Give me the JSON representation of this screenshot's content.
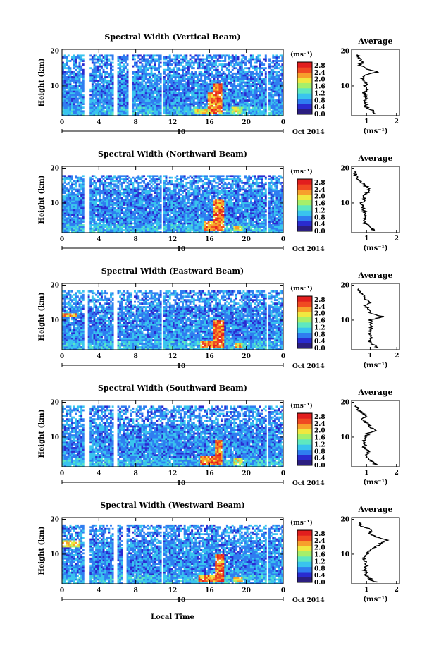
{
  "figure": {
    "x_axis_label": "Local Time",
    "day_label": "10",
    "month_label": "Oct 2014",
    "y_axis_label": "Height (km)",
    "colorbar_unit": "(ms⁻¹)",
    "profile_title": "Average",
    "profile_xlabel": "(ms⁻¹)"
  },
  "colorscale": {
    "stops": [
      "#2b1e80",
      "#2a2bd0",
      "#2f7df0",
      "#39c4ee",
      "#5ee8c0",
      "#a6ef6a",
      "#f0e840",
      "#f7a02c",
      "#f04a22",
      "#e21e1e"
    ],
    "tick_labels": [
      "2.8",
      "2.4",
      "2.0",
      "1.6",
      "1.2",
      "0.8",
      "0.4",
      "0.0"
    ]
  },
  "chart_data": [
    {
      "type": "heatmap",
      "title": "Spectral Width (Vertical Beam)",
      "x": [
        0,
        4,
        8,
        12,
        16,
        20,
        24
      ],
      "x_tick_labels": [
        "0",
        "4",
        "8",
        "12",
        "16",
        "20",
        "0"
      ],
      "y_ticks": [
        10,
        20
      ],
      "y_tick_labels": [
        "10",
        "20"
      ],
      "ylim": [
        1.5,
        20.5
      ],
      "colorbar_range": [
        0.0,
        3.0
      ],
      "data_gaps_hours": [
        [
          2.5,
          3.0
        ],
        [
          5.6,
          5.9
        ],
        [
          7.2,
          7.5
        ],
        [
          10.8,
          11.1
        ],
        [
          22.1,
          22.4
        ]
      ],
      "top_of_data_km": 19.0,
      "enhanced_regions": [
        {
          "x_hours": [
            15.8,
            16.4
          ],
          "y_km": [
            2,
            8
          ],
          "value": 2.8
        },
        {
          "x_hours": [
            16.4,
            17.4
          ],
          "y_km": [
            2,
            11
          ],
          "value": 2.9
        },
        {
          "x_hours": [
            18.5,
            19.5
          ],
          "y_km": [
            2,
            4
          ],
          "value": 2.2
        },
        {
          "x_hours": [
            14.5,
            16.0
          ],
          "y_km": [
            2,
            3.5
          ],
          "value": 2.4
        }
      ],
      "profile": {
        "title": "Average",
        "xlabel": "(ms⁻¹)",
        "x_ticks": [
          1,
          2
        ],
        "xlim": [
          0.5,
          2.1
        ],
        "heights_km": [
          2,
          3,
          4,
          5,
          6,
          7,
          8,
          9,
          10,
          11,
          12,
          13,
          14,
          15,
          16,
          17,
          18,
          19
        ],
        "values": [
          1.3,
          1.2,
          1.0,
          0.95,
          0.95,
          1.0,
          0.9,
          1.05,
          0.95,
          1.0,
          0.85,
          0.95,
          1.35,
          0.95,
          0.8,
          0.85,
          0.75,
          0.7
        ]
      }
    },
    {
      "type": "heatmap",
      "title": "Spectral Width (Northward Beam)",
      "x": [
        0,
        4,
        8,
        12,
        16,
        20,
        24
      ],
      "x_tick_labels": [
        "0",
        "4",
        "8",
        "12",
        "16",
        "20",
        "0"
      ],
      "y_ticks": [
        10,
        20
      ],
      "y_tick_labels": [
        "10",
        "20"
      ],
      "ylim": [
        1.5,
        20.5
      ],
      "colorbar_range": [
        0.0,
        3.0
      ],
      "data_gaps_hours": [
        [
          2.5,
          3.0
        ],
        [
          10.8,
          11.1
        ],
        [
          22.1,
          22.4
        ]
      ],
      "top_of_data_km": 18.0,
      "enhanced_regions": [
        {
          "x_hours": [
            15.5,
            16.4
          ],
          "y_km": [
            2,
            5
          ],
          "value": 2.8
        },
        {
          "x_hours": [
            16.4,
            17.6
          ],
          "y_km": [
            2,
            11
          ],
          "value": 2.9
        },
        {
          "x_hours": [
            18.7,
            19.5
          ],
          "y_km": [
            2,
            3.5
          ],
          "value": 2.4
        }
      ],
      "profile": {
        "title": "Average",
        "xlabel": "(ms⁻¹)",
        "x_ticks": [
          1,
          2
        ],
        "xlim": [
          0.5,
          2.1
        ],
        "heights_km": [
          2,
          3,
          4,
          5,
          6,
          7,
          8,
          9,
          10,
          11,
          12,
          13,
          14,
          15,
          16,
          17,
          18,
          19
        ],
        "values": [
          1.25,
          1.15,
          1.0,
          0.9,
          1.0,
          0.95,
          0.9,
          0.85,
          0.8,
          0.95,
          0.9,
          1.05,
          1.1,
          0.95,
          0.8,
          0.7,
          0.65,
          0.6
        ]
      }
    },
    {
      "type": "heatmap",
      "title": "Spectral Width (Eastward Beam)",
      "x": [
        0,
        4,
        8,
        12,
        16,
        20,
        24
      ],
      "x_tick_labels": [
        "0",
        "4",
        "8",
        "12",
        "16",
        "20",
        "0"
      ],
      "y_ticks": [
        10,
        20
      ],
      "y_tick_labels": [
        "10",
        "20"
      ],
      "ylim": [
        1.5,
        20.5
      ],
      "colorbar_range": [
        0.0,
        3.0
      ],
      "data_gaps_hours": [
        [
          2.5,
          2.8
        ],
        [
          5.6,
          5.9
        ],
        [
          10.8,
          11.1
        ],
        [
          22.1,
          22.4
        ]
      ],
      "top_of_data_km": 18.5,
      "enhanced_regions": [
        {
          "x_hours": [
            0.0,
            1.5
          ],
          "y_km": [
            11,
            12
          ],
          "value": 2.6
        },
        {
          "x_hours": [
            15.0,
            16.5
          ],
          "y_km": [
            2,
            4
          ],
          "value": 2.8
        },
        {
          "x_hours": [
            16.5,
            17.6
          ],
          "y_km": [
            2,
            10
          ],
          "value": 2.9
        },
        {
          "x_hours": [
            18.8,
            19.6
          ],
          "y_km": [
            2,
            3.5
          ],
          "value": 2.5
        }
      ],
      "profile": {
        "title": "Average",
        "xlabel": "(ms⁻¹)",
        "x_ticks": [
          1,
          2
        ],
        "xlim": [
          0.3,
          2.1
        ],
        "heights_km": [
          2,
          3,
          4,
          5,
          6,
          7,
          8,
          9,
          10,
          11,
          12,
          13,
          14,
          15,
          16,
          17,
          18,
          19
        ],
        "values": [
          1.3,
          1.1,
          1.0,
          1.05,
          1.0,
          1.0,
          1.05,
          1.05,
          1.0,
          1.5,
          1.0,
          0.95,
          0.8,
          1.0,
          0.85,
          0.75,
          0.6,
          0.55
        ]
      }
    },
    {
      "type": "heatmap",
      "title": "Spectral Width (Southward Beam)",
      "x": [
        0,
        4,
        8,
        12,
        16,
        20,
        24
      ],
      "x_tick_labels": [
        "0",
        "4",
        "8",
        "12",
        "16",
        "20",
        "0"
      ],
      "y_ticks": [
        10,
        20
      ],
      "y_tick_labels": [
        "10",
        "20"
      ],
      "ylim": [
        1.5,
        20.5
      ],
      "colorbar_range": [
        0.0,
        3.0
      ],
      "data_gaps_hours": [
        [
          2.5,
          2.9
        ],
        [
          5.6,
          5.9
        ],
        [
          22.1,
          22.4
        ]
      ],
      "top_of_data_km": 19.0,
      "enhanced_regions": [
        {
          "x_hours": [
            15.0,
            16.6
          ],
          "y_km": [
            2,
            4.5
          ],
          "value": 2.8
        },
        {
          "x_hours": [
            16.6,
            17.4
          ],
          "y_km": [
            2,
            9
          ],
          "value": 2.9
        },
        {
          "x_hours": [
            18.6,
            19.6
          ],
          "y_km": [
            2,
            4
          ],
          "value": 2.3
        }
      ],
      "profile": {
        "title": "Average",
        "xlabel": "(ms⁻¹)",
        "x_ticks": [
          1,
          2
        ],
        "xlim": [
          0.5,
          2.1
        ],
        "heights_km": [
          2,
          3,
          4,
          5,
          6,
          7,
          8,
          9,
          10,
          11,
          12,
          13,
          14,
          15,
          16,
          17,
          18,
          19
        ],
        "values": [
          1.35,
          1.2,
          1.05,
          1.0,
          1.05,
          0.9,
          0.95,
          0.9,
          1.0,
          1.05,
          1.3,
          1.1,
          1.0,
          0.85,
          1.0,
          0.85,
          0.7,
          0.65
        ]
      }
    },
    {
      "type": "heatmap",
      "title": "Spectral Width (Westward Beam)",
      "x": [
        0,
        4,
        8,
        12,
        16,
        20,
        24
      ],
      "x_tick_labels": [
        "0",
        "4",
        "8",
        "12",
        "16",
        "20",
        "0"
      ],
      "y_ticks": [
        10,
        20
      ],
      "y_tick_labels": [
        "10",
        "20"
      ],
      "ylim": [
        1.5,
        20.5
      ],
      "colorbar_range": [
        0.0,
        3.0
      ],
      "data_gaps_hours": [
        [
          2.5,
          2.9
        ],
        [
          5.6,
          5.9
        ],
        [
          6.7,
          7.0
        ],
        [
          10.8,
          11.1
        ],
        [
          22.1,
          22.4
        ]
      ],
      "top_of_data_km": 18.5,
      "enhanced_regions": [
        {
          "x_hours": [
            0.0,
            2.0
          ],
          "y_km": [
            12,
            14
          ],
          "value": 2.4
        },
        {
          "x_hours": [
            14.8,
            16.6
          ],
          "y_km": [
            2,
            4
          ],
          "value": 2.8
        },
        {
          "x_hours": [
            16.6,
            17.6
          ],
          "y_km": [
            2,
            10
          ],
          "value": 2.9
        },
        {
          "x_hours": [
            18.6,
            19.6
          ],
          "y_km": [
            2,
            3.5
          ],
          "value": 2.4
        }
      ],
      "profile": {
        "title": "Average",
        "xlabel": "(ms⁻¹)",
        "x_ticks": [
          1,
          2
        ],
        "xlim": [
          0.5,
          2.1
        ],
        "heights_km": [
          2,
          3,
          4,
          5,
          6,
          7,
          8,
          9,
          10,
          11,
          12,
          13,
          14,
          15,
          16,
          17,
          18,
          19
        ],
        "values": [
          1.3,
          1.1,
          1.0,
          0.95,
          0.95,
          1.0,
          0.95,
          0.9,
          1.0,
          1.1,
          1.3,
          1.45,
          1.7,
          1.3,
          1.1,
          1.2,
          0.8,
          0.75
        ]
      }
    }
  ]
}
